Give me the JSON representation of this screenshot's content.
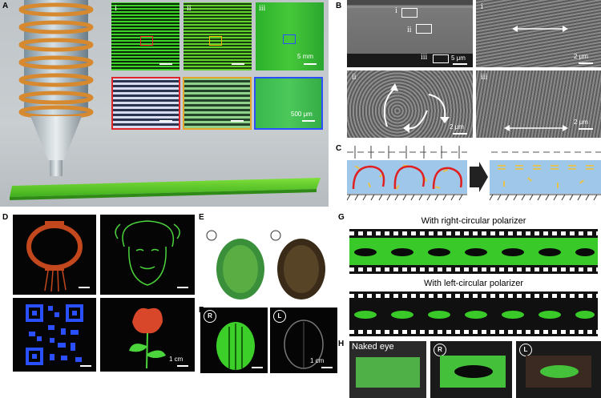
{
  "panels": {
    "A": {
      "label": "A",
      "sub": [
        "i",
        "ii",
        "iii"
      ],
      "scale_top": "5 mm",
      "scale_bottom": "500 μm"
    },
    "B": {
      "label": "B",
      "sub": [
        "i",
        "ii",
        "iii"
      ],
      "scale": [
        "5 μm",
        "2 μm",
        "2 μm",
        "2 μm"
      ]
    },
    "C": {
      "label": "C"
    },
    "D": {
      "label": "D",
      "scale": "1 cm"
    },
    "E": {
      "label": "E"
    },
    "F": {
      "label": "F",
      "scale": "1 cm",
      "right_tag": "R",
      "left_tag": "L"
    },
    "G": {
      "label": "G",
      "caption_right": "With right-circular polarizer",
      "caption_left": "With left-circular polarizer"
    },
    "H": {
      "label": "H",
      "naked": "Naked eye",
      "right_tag": "R",
      "left_tag": "L"
    }
  },
  "colors": {
    "green": "#39c928",
    "bg_grey": "#cfd3d6",
    "copper": "#d9893a",
    "blue": "#2a4fff",
    "orange": "#c3471c"
  }
}
